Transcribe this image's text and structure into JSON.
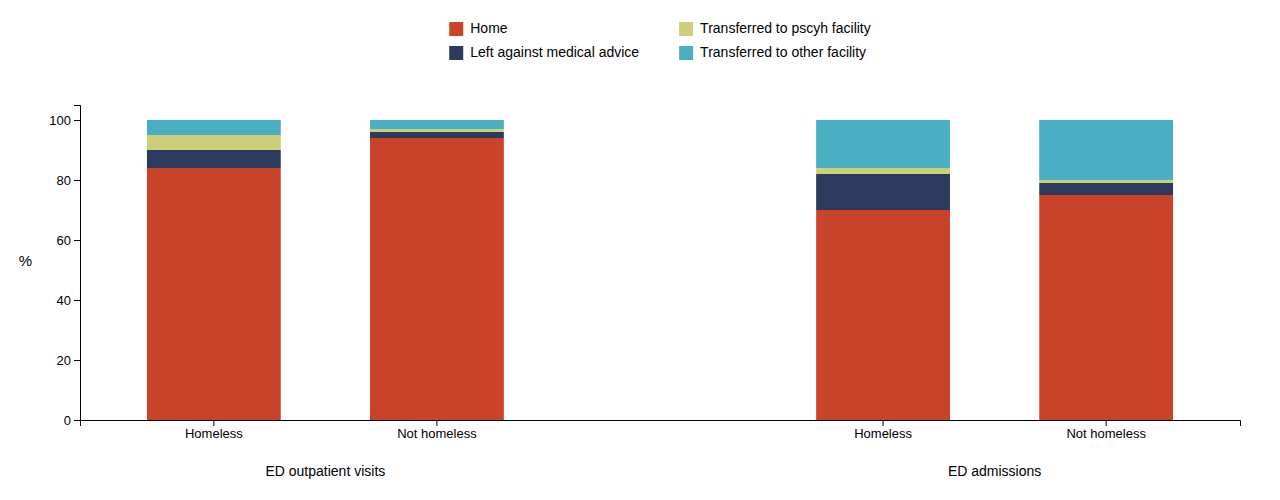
{
  "chart_data": {
    "type": "bar",
    "stacked": true,
    "categories": [
      "Homeless",
      "Not homeless",
      "Homeless",
      "Not homeless"
    ],
    "groups": [
      "ED outpatient visits",
      "ED outpatient visits",
      "ED admissions",
      "ED admissions"
    ],
    "series": [
      {
        "name": "Home",
        "color": "#c9432b",
        "values": [
          84,
          94,
          70,
          75
        ]
      },
      {
        "name": "Left against medical advice",
        "color": "#2d3a5e",
        "values": [
          6,
          2,
          12,
          4
        ]
      },
      {
        "name": "Transferred to pscyh facility",
        "color": "#cccf7a",
        "values": [
          5,
          1,
          2,
          1
        ]
      },
      {
        "name": "Transferred to other facility",
        "color": "#4bafc4",
        "values": [
          5,
          3,
          16,
          20
        ]
      }
    ],
    "ylabel": "%",
    "ylim": [
      0,
      105
    ],
    "yticks": [
      0,
      20,
      40,
      60,
      80,
      100
    ],
    "grid": false,
    "legend": "top"
  }
}
